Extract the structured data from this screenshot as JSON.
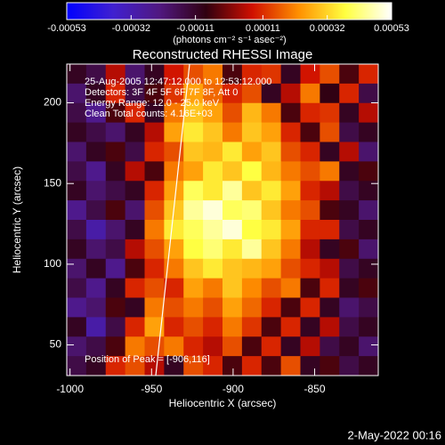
{
  "chart_data": {
    "type": "heatmap",
    "title": "Reconstructed RHESSI Image",
    "xlabel": "Heliocentric X (arcsec)",
    "ylabel": "Heliocentric Y (arcsec)",
    "xlim": [
      -1002,
      -811
    ],
    "ylim": [
      31,
      224
    ],
    "xticks": [
      -1000,
      -950,
      -900,
      -850
    ],
    "yticks": [
      50,
      100,
      150,
      200
    ],
    "clim": [
      -0.00053,
      0.00053
    ],
    "colorbar_ticks": [
      -0.00053,
      -0.00032,
      -0.00011,
      0.00011,
      0.00032,
      0.00053
    ],
    "colorbar_label": "(photons cm⁻² s⁻¹ asec⁻²)",
    "colormap": [
      "#0000ff",
      "#4020d0",
      "#501880",
      "#300010",
      "#d01000",
      "#ff9000",
      "#ffff40",
      "#ffffff"
    ],
    "annotations": [
      "25-Aug-2005 12:47:12.000 to 12:53:12.000",
      "Detectors: 3F 4F 5F 6F 7F 8F, Att 0",
      "Energy Range: 12.0 - 25.0 keV",
      "Clean     Total counts: 4.16E+03"
    ],
    "peak_label": "Position of Peak = [-906,116]",
    "date_stamp": "2-May-2022 00:16",
    "z": [
      [
        -0.0001,
        -0.00015,
        5e-05,
        -0.0002,
        -0.0001,
        8e-05,
        0.00015,
        0.0002,
        -5e-05,
        0.0001,
        0.00012,
        -0.0001,
        8e-05,
        0.00015,
        -5e-05,
        0.0001
      ],
      [
        -0.0002,
        -0.0001,
        0.0001,
        -0.00015,
        -5e-05,
        0.00012,
        0.00025,
        0.00018,
        0.0001,
        0.00015,
        -0.0001,
        5e-05,
        0.0002,
        -8e-05,
        0.0001,
        -0.00015
      ],
      [
        -0.00015,
        -0.00025,
        -5e-05,
        0.0001,
        -0.0001,
        0.0002,
        0.0003,
        0.00025,
        0.00015,
        0.00028,
        0.0002,
        -5e-05,
        0.0001,
        0.00012,
        -0.0001,
        5e-05
      ],
      [
        -0.0001,
        -0.00015,
        -0.0002,
        -0.0001,
        5e-05,
        0.00025,
        0.00035,
        0.0003,
        0.0002,
        0.0003,
        0.00025,
        0.0001,
        -5e-05,
        0.00015,
        -0.00015,
        -0.0001
      ],
      [
        -0.0002,
        -0.0001,
        -5e-05,
        -0.00015,
        0.0001,
        0.00015,
        0.0003,
        0.00028,
        0.00035,
        0.00025,
        0.0003,
        0.00015,
        0.0001,
        -0.0001,
        5e-05,
        -0.0002
      ],
      [
        -0.00015,
        -0.00025,
        -0.0001,
        5e-05,
        -5e-05,
        0.0002,
        0.00025,
        0.00035,
        0.0003,
        0.00038,
        0.00028,
        0.0002,
        0.00015,
        0.0002,
        -0.0001,
        -5e-05
      ],
      [
        -0.0001,
        -0.0002,
        -0.00015,
        -0.0001,
        0.0001,
        0.00025,
        0.0004,
        0.00035,
        0.00045,
        0.0003,
        0.00035,
        0.00025,
        0.0001,
        5e-05,
        -0.00015,
        -0.0001
      ],
      [
        -0.00025,
        -0.00015,
        -5e-05,
        -0.0002,
        0.00015,
        0.0003,
        0.00045,
        0.0005,
        0.0004,
        0.00042,
        0.0003,
        0.0002,
        0.00015,
        -5e-05,
        -0.0001,
        -0.0002
      ],
      [
        -0.00015,
        -0.0003,
        -0.0002,
        -0.0001,
        0.0002,
        0.00035,
        0.0004,
        0.00045,
        0.0005,
        0.00038,
        0.00035,
        0.00025,
        0.0001,
        0.0001,
        -0.00015,
        -0.0001
      ],
      [
        -0.0001,
        -0.0002,
        -0.00015,
        5e-05,
        0.00015,
        0.00025,
        0.00038,
        0.00042,
        0.00035,
        0.00045,
        0.0003,
        0.0002,
        5e-05,
        -0.0001,
        -5e-05,
        -0.0002
      ],
      [
        -0.0002,
        -0.0001,
        -0.00025,
        -5e-05,
        0.0001,
        0.0002,
        0.0003,
        0.00035,
        0.0003,
        0.00028,
        0.00025,
        0.00015,
        0.0001,
        5e-05,
        -0.00015,
        -0.0001
      ],
      [
        -0.00015,
        -0.00025,
        -0.0001,
        0.0001,
        0.00015,
        0.0001,
        0.00025,
        0.0002,
        0.0003,
        0.00022,
        0.00015,
        0.0002,
        -5e-05,
        0.0001,
        -0.0001,
        -5e-05
      ],
      [
        -0.00025,
        -0.0002,
        -5e-05,
        -0.0001,
        0.0002,
        0.00015,
        0.0002,
        0.00015,
        0.00025,
        0.00018,
        0.0001,
        -5e-05,
        0.0001,
        -0.0001,
        -0.0002,
        -0.00015
      ],
      [
        -0.0001,
        -0.0003,
        -0.00015,
        0.0001,
        0.00025,
        0.0001,
        0.00015,
        0.0001,
        0.0002,
        0.00012,
        -5e-05,
        0.0001,
        -0.0001,
        5e-05,
        -0.00015,
        -0.0001
      ],
      [
        -0.0002,
        -0.00015,
        -5e-05,
        0.0002,
        0.00015,
        0.0002,
        0.0001,
        5e-05,
        0.00015,
        -5e-05,
        0.0001,
        -0.0001,
        5e-05,
        -0.00015,
        -0.0001,
        -0.0002
      ],
      [
        -0.00015,
        -0.0001,
        0.0001,
        0.00015,
        5e-05,
        -0.0001,
        0.00015,
        0.0001,
        -5e-05,
        0.0001,
        -5e-05,
        0.00015,
        -0.0001,
        -5e-05,
        -0.00015,
        -0.0001
      ]
    ]
  }
}
